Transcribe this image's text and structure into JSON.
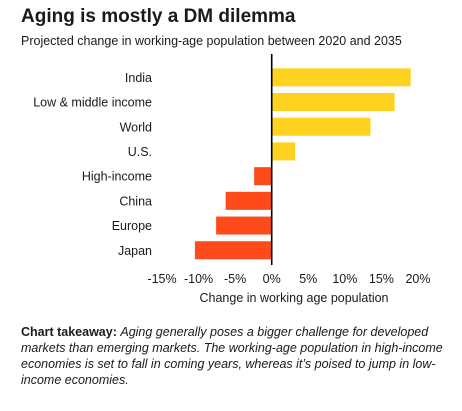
{
  "title": "Aging is mostly a DM dilemma",
  "subtitle": "Projected change in working-age population between 2020 and 2035",
  "chart_data": {
    "type": "bar",
    "orientation": "horizontal",
    "categories": [
      "India",
      "Low & middle income",
      "World",
      "U.S.",
      "High-income",
      "China",
      "Europe",
      "Japan"
    ],
    "values": [
      19,
      16.8,
      13.5,
      3.2,
      -2.4,
      -6.3,
      -7.6,
      -10.5
    ],
    "xlabel": "Change in working age population",
    "xlim": [
      -15,
      20
    ],
    "xticks": [
      -15,
      -10,
      -5,
      0,
      5,
      10,
      15,
      20
    ],
    "xtick_labels": [
      "-15%",
      "-10%",
      "-5%",
      "0%",
      "5%",
      "10%",
      "15%",
      "20%"
    ],
    "grid": false,
    "colors": {
      "positive": "#ffd21f",
      "negative": "#ff4a1a",
      "zero_line": "#000000"
    }
  },
  "takeaway": {
    "lead": "Chart takeaway:",
    "text": "Aging generally poses a bigger challenge for developed markets than emerging markets. The working-age population in high-income economies is set to fall in coming years, whereas it’s poised to jump in low-income economies."
  }
}
